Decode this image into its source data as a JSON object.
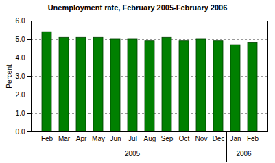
{
  "chart_data": {
    "type": "bar",
    "title": "Unemployment rate, February 2005-February 2006",
    "y_label": "Percent",
    "categories": [
      "Feb",
      "Mar",
      "Apr",
      "May",
      "Jun",
      "Jul",
      "Aug",
      "Sep",
      "Oct",
      "Nov",
      "Dec",
      "Jan",
      "Feb"
    ],
    "years": [
      2005,
      2005,
      2005,
      2005,
      2005,
      2005,
      2005,
      2005,
      2005,
      2005,
      2005,
      2006,
      2006
    ],
    "values": [
      5.4,
      5.1,
      5.1,
      5.1,
      5.0,
      5.0,
      4.9,
      5.1,
      4.9,
      5.0,
      4.9,
      4.7,
      4.8
    ],
    "color": "#008000",
    "ylim": [
      0,
      6
    ],
    "yticks": [
      0,
      1,
      2,
      3,
      4,
      5,
      6
    ],
    "grid": true
  }
}
